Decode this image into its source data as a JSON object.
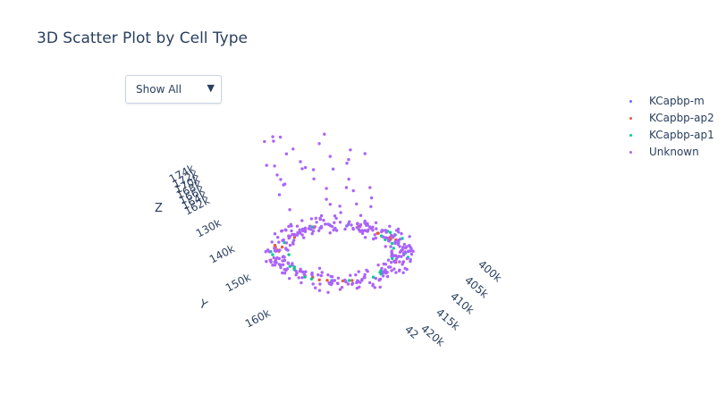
{
  "title": "3D Scatter Plot by Cell Type",
  "dropdown": {
    "selected": "Show All",
    "arrow": "▼"
  },
  "chart_data": {
    "type": "scatter",
    "projection": "3d",
    "series": [
      {
        "name": "KCapbp-m",
        "color": "#636efa",
        "count": 0
      },
      {
        "name": "KCapbp-ap2",
        "color": "#ef553b",
        "count": 24
      },
      {
        "name": "KCapbp-ap1",
        "color": "#00cc96",
        "count": 36
      },
      {
        "name": "Unknown",
        "color": "#ab63fa",
        "count": 360
      }
    ],
    "axes": {
      "x": {
        "title": "",
        "ticks": [
          "400k",
          "405k",
          "410k",
          "415k",
          "420k",
          "42"
        ]
      },
      "y": {
        "title": "Y",
        "ticks": [
          "130k",
          "140k",
          "150k",
          "160k"
        ]
      },
      "z": {
        "title": "Z",
        "ticks": [
          "174k",
          "172k",
          "170k",
          "168k",
          "166k",
          "164k",
          "162k"
        ]
      }
    },
    "legend_position": "top-right"
  }
}
